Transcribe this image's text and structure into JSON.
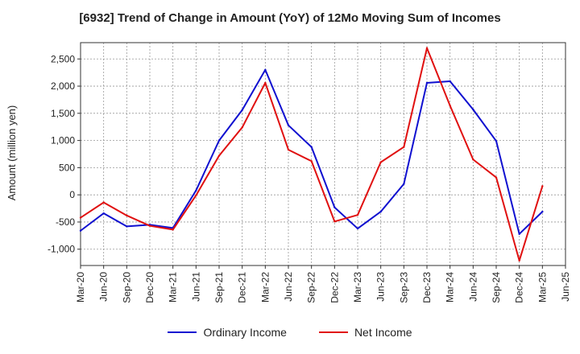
{
  "chart_data": {
    "type": "line",
    "title": "[6932]  Trend of Change in Amount (YoY) of 12Mo Moving Sum of Incomes",
    "ylabel": "Amount (million yen)",
    "xlabel": "",
    "ylim": [
      -1300,
      2800
    ],
    "yticks": [
      -1000,
      -500,
      0,
      500,
      1000,
      1500,
      2000,
      2500
    ],
    "ytick_labels": [
      "-1,000",
      "-500",
      "0",
      "500",
      "1,000",
      "1,500",
      "2,000",
      "2,500"
    ],
    "categories": [
      "Mar-20",
      "Jun-20",
      "Sep-20",
      "Dec-20",
      "Mar-21",
      "Jun-21",
      "Sep-21",
      "Dec-21",
      "Mar-22",
      "Jun-22",
      "Sep-22",
      "Dec-22",
      "Mar-23",
      "Jun-23",
      "Sep-23",
      "Dec-23",
      "Mar-24",
      "Jun-24",
      "Sep-24",
      "Dec-24",
      "Mar-25",
      "Jun-25"
    ],
    "grid": true,
    "legend_position": "bottom",
    "series": [
      {
        "name": "Ordinary Income",
        "color": "#1010d0",
        "values": [
          -660,
          -340,
          -580,
          -550,
          -610,
          80,
          1000,
          1560,
          2300,
          1280,
          880,
          -230,
          -620,
          -310,
          200,
          2060,
          2090,
          1570,
          990,
          -720,
          -310,
          null
        ]
      },
      {
        "name": "Net Income",
        "color": "#e01010",
        "values": [
          -420,
          -140,
          -380,
          -570,
          -640,
          -10,
          720,
          1240,
          2060,
          830,
          620,
          -490,
          -370,
          600,
          880,
          2700,
          1640,
          650,
          320,
          -1210,
          160,
          null
        ]
      }
    ]
  }
}
